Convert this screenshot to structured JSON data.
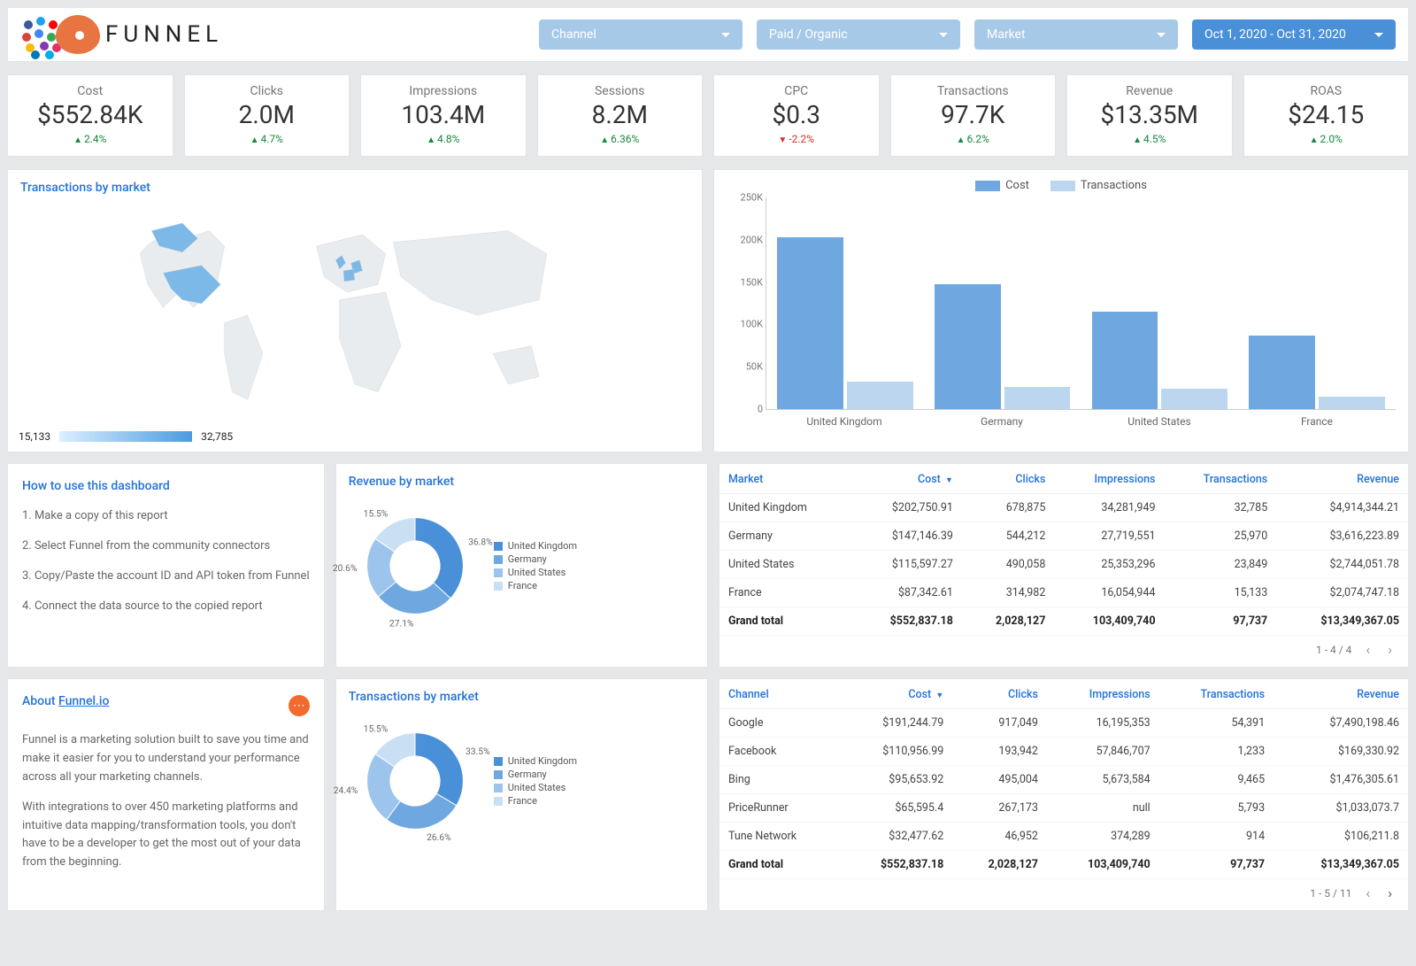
{
  "brand": {
    "name": "FUNNEL"
  },
  "filters": {
    "channel_label": "Channel",
    "paid_organic_label": "Paid / Organic",
    "market_label": "Market",
    "date_range_label": "Oct 1, 2020 - Oct 31, 2020"
  },
  "kpis": [
    {
      "label": "Cost",
      "value": "$552.84K",
      "delta": "2.4%",
      "dir": "up"
    },
    {
      "label": "Clicks",
      "value": "2.0M",
      "delta": "4.7%",
      "dir": "up"
    },
    {
      "label": "Impressions",
      "value": "103.4M",
      "delta": "4.8%",
      "dir": "up"
    },
    {
      "label": "Sessions",
      "value": "8.2M",
      "delta": "6.36%",
      "dir": "up"
    },
    {
      "label": "CPC",
      "value": "$0.3",
      "delta": "-2.2%",
      "dir": "down"
    },
    {
      "label": "Transactions",
      "value": "97.7K",
      "delta": "6.2%",
      "dir": "up"
    },
    {
      "label": "Revenue",
      "value": "$13.35M",
      "delta": "4.5%",
      "dir": "up"
    },
    {
      "label": "ROAS",
      "value": "$24.15",
      "delta": "2.0%",
      "dir": "up"
    }
  ],
  "map": {
    "title": "Transactions by market",
    "legend_min": "15,133",
    "legend_max": "32,785",
    "grad_from": "#dcefff",
    "grad_to": "#4a9be0",
    "land_fill": "#e9ecef",
    "land_stroke": "#d0d4d8",
    "highlight_fill": "#7cb9e8"
  },
  "barChart": {
    "series": [
      {
        "name": "Cost",
        "color": "#6fa8e0"
      },
      {
        "name": "Transactions",
        "color": "#bcd6f0"
      }
    ],
    "yMax": 250000,
    "yTicks": [
      "0",
      "50K",
      "100K",
      "150K",
      "200K",
      "250K"
    ],
    "categories": [
      "United Kingdom",
      "Germany",
      "United States",
      "France"
    ],
    "data": {
      "Cost": [
        202751,
        147146,
        115597,
        87343
      ],
      "Transactions": [
        32785,
        25970,
        23849,
        15133
      ]
    },
    "axis_color": "#cccccc",
    "tick_font": "11",
    "label_font": "12"
  },
  "howTo": {
    "title": "How to use this dashboard",
    "steps": [
      "1. Make a copy of this report",
      "2. Select Funnel from the community connectors",
      "3. Copy/Paste the account ID and API token from Funnel",
      "4. Connect the data source to the copied report"
    ]
  },
  "about": {
    "title_prefix": "About ",
    "link_text": "Funnel.io",
    "p1": "Funnel is a marketing solution built to save you time and make it easier for you to understand your performance across all your marketing channels.",
    "p2": "With integrations to over 450 marketing platforms and intuitive data mapping/transformation tools, you don't have to be a developer to get the most out of your data from the beginning."
  },
  "donutRevenue": {
    "title": "Revenue by market",
    "slices": [
      {
        "label": "United Kingdom",
        "pct": 36.8,
        "color": "#4a90d9"
      },
      {
        "label": "Germany",
        "pct": 27.1,
        "color": "#6fa8e0"
      },
      {
        "label": "United States",
        "pct": 20.6,
        "color": "#9cc4ec"
      },
      {
        "label": "France",
        "pct": 15.5,
        "color": "#c9dff4"
      }
    ]
  },
  "donutTransactions": {
    "title": "Transactions by market",
    "slices": [
      {
        "label": "United Kingdom",
        "pct": 33.5,
        "color": "#4a90d9"
      },
      {
        "label": "Germany",
        "pct": 26.6,
        "color": "#6fa8e0"
      },
      {
        "label": "United States",
        "pct": 24.4,
        "color": "#9cc4ec"
      },
      {
        "label": "France",
        "pct": 15.5,
        "color": "#c9dff4"
      }
    ]
  },
  "tableMarket": {
    "columns": [
      "Market",
      "Cost",
      "Clicks",
      "Impressions",
      "Transactions",
      "Revenue"
    ],
    "sortCol": "Cost",
    "rows": [
      [
        "United Kingdom",
        "$202,750.91",
        "678,875",
        "34,281,949",
        "32,785",
        "$4,914,344.21"
      ],
      [
        "Germany",
        "$147,146.39",
        "544,212",
        "27,719,551",
        "25,970",
        "$3,616,223.89"
      ],
      [
        "United States",
        "$115,597.27",
        "490,058",
        "25,353,296",
        "23,849",
        "$2,744,051.78"
      ],
      [
        "France",
        "$87,342.61",
        "314,982",
        "16,054,944",
        "15,133",
        "$2,074,747.18"
      ]
    ],
    "total": [
      "Grand total",
      "$552,837.18",
      "2,028,127",
      "103,409,740",
      "97,737",
      "$13,349,367.05"
    ],
    "pager": "1 - 4 / 4",
    "has_next": false
  },
  "tableChannel": {
    "columns": [
      "Channel",
      "Cost",
      "Clicks",
      "Impressions",
      "Transactions",
      "Revenue"
    ],
    "sortCol": "Cost",
    "rows": [
      [
        "Google",
        "$191,244.79",
        "917,049",
        "16,195,353",
        "54,391",
        "$7,490,198.46"
      ],
      [
        "Facebook",
        "$110,956.99",
        "193,942",
        "57,846,707",
        "1,233",
        "$169,330.92"
      ],
      [
        "Bing",
        "$95,653.92",
        "495,004",
        "5,673,584",
        "9,465",
        "$1,476,305.61"
      ],
      [
        "PriceRunner",
        "$65,595.4",
        "267,173",
        "null",
        "5,793",
        "$1,033,073.7"
      ],
      [
        "Tune Network",
        "$32,477.62",
        "46,952",
        "374,289",
        "914",
        "$106,211.8"
      ]
    ],
    "total": [
      "Grand total",
      "$552,837.18",
      "2,028,127",
      "103,409,740",
      "97,737",
      "$13,349,367.05"
    ],
    "pager": "1 - 5 / 11",
    "has_next": true
  },
  "colors": {
    "logo_dots": [
      "#3b5998",
      "#1da1f2",
      "#ff0000",
      "#db4437",
      "#4285f4",
      "#34a853",
      "#fbbc05",
      "#833ab4",
      "#e1306c",
      "#0077b5",
      "#00aced"
    ]
  }
}
